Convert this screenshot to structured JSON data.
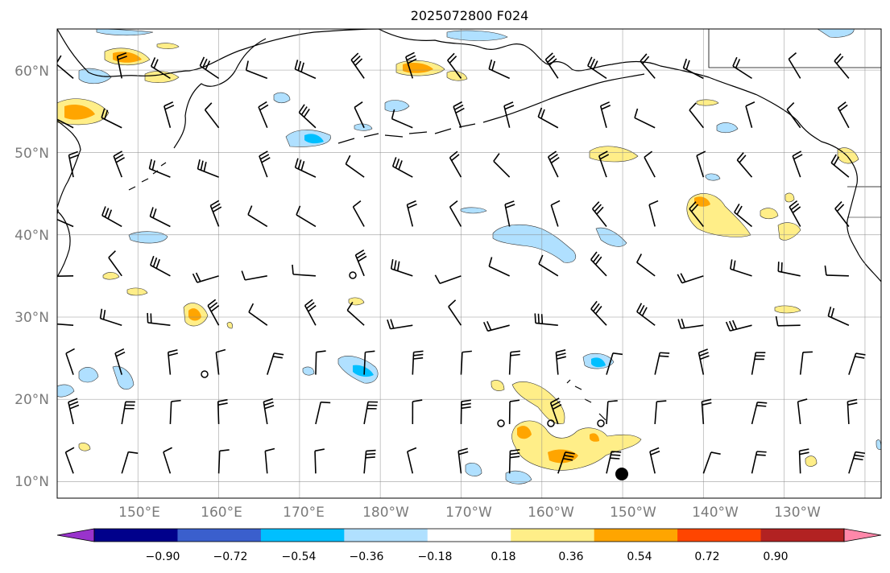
{
  "title": "2025072800 F024",
  "map": {
    "region": "North Pacific",
    "lon_range": [
      140,
      242
    ],
    "lat_range": [
      8,
      65
    ],
    "lat_labels": [
      "10°N",
      "20°N",
      "30°N",
      "40°N",
      "50°N",
      "60°N"
    ],
    "lon_labels": [
      "150°E",
      "160°E",
      "170°E",
      "180°W",
      "170°W",
      "160°W",
      "150°W",
      "140°W",
      "130°W"
    ],
    "gridlines": true
  },
  "colorbar": {
    "tick_labels": [
      "−0.90",
      "−0.72",
      "−0.54",
      "−0.36",
      "−0.18",
      "0.18",
      "0.36",
      "0.54",
      "0.72",
      "0.90"
    ],
    "colors": [
      "#9933cc",
      "#00008b",
      "#3a5fcd",
      "#00bfff",
      "#b0e0ff",
      "#ffffff",
      "#ffee88",
      "#ffa500",
      "#ff4500",
      "#b22222",
      "#ff88aa"
    ],
    "extend": "both"
  },
  "contours": {
    "colors": {
      "light_pos": "#ffee88",
      "mid_pos": "#ffa500",
      "light_neg": "#b0e0ff",
      "mid_neg": "#00bfff"
    }
  },
  "wind_barbs": {
    "color": "#000000",
    "note_lons": [
      142,
      148,
      154,
      160,
      166,
      172,
      178,
      184,
      190,
      196,
      202,
      208,
      214,
      220,
      226,
      232,
      238
    ],
    "note_lats": [
      11,
      17,
      23,
      29,
      35,
      41,
      47,
      53,
      59
    ]
  }
}
